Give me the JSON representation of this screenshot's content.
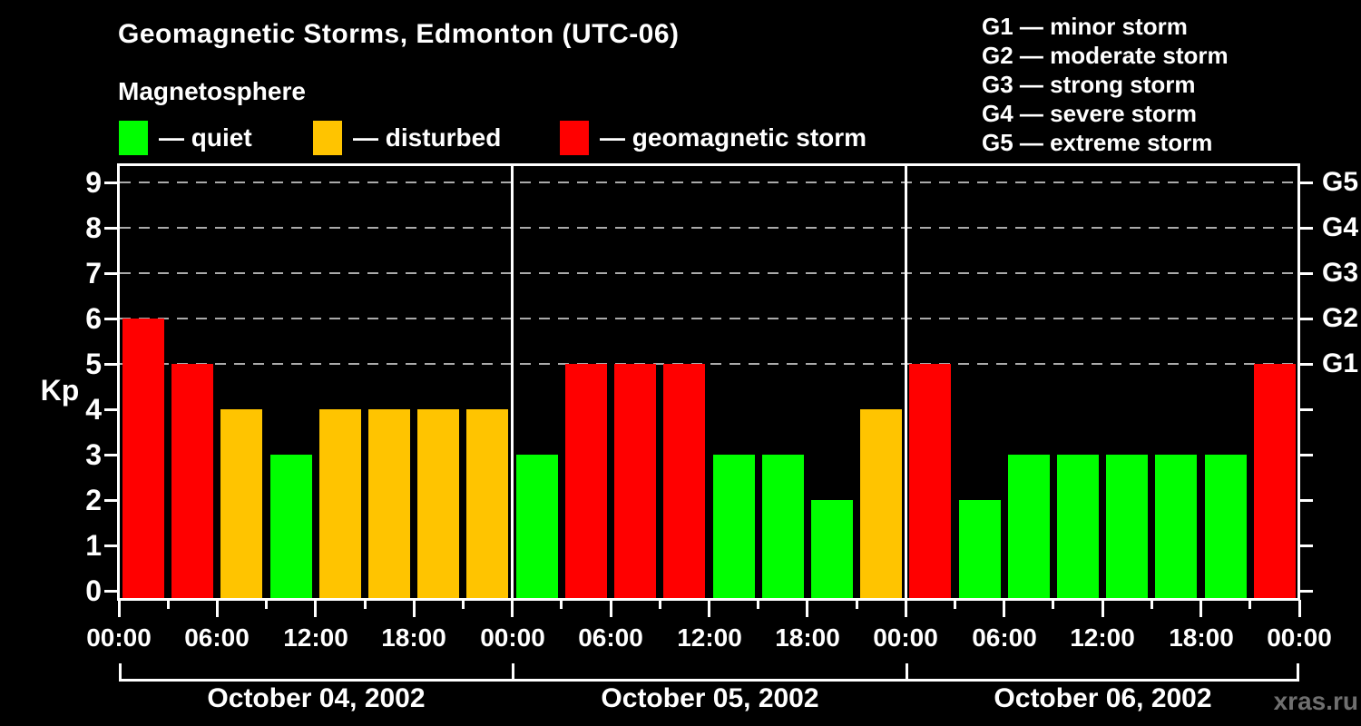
{
  "header": {
    "title": "Geomagnetic Storms, Edmonton (UTC-06)",
    "subtitle": "Magnetosphere"
  },
  "condition_legend": [
    {
      "key": "quiet",
      "label": "— quiet",
      "color": "#00ff00"
    },
    {
      "key": "disturbed",
      "label": "— disturbed",
      "color": "#ffc400"
    },
    {
      "key": "storm",
      "label": "— geomagnetic storm",
      "color": "#ff0000"
    }
  ],
  "g_scale_legend": [
    "G1 — minor storm",
    "G2 — moderate storm",
    "G3 — strong storm",
    "G4 — severe storm",
    "G5 — extreme storm"
  ],
  "watermark": "xras.ru",
  "chart_data": {
    "type": "bar",
    "title": "Geomagnetic Storms, Edmonton (UTC-06)",
    "ylabel": "Kp",
    "ylim": [
      0,
      9
    ],
    "y_tick_labels": [
      "0",
      "1",
      "2",
      "3",
      "4",
      "5",
      "6",
      "7",
      "8",
      "9"
    ],
    "right_axis": [
      {
        "label": "G1",
        "kp": 5
      },
      {
        "label": "G2",
        "kp": 6
      },
      {
        "label": "G3",
        "kp": 7
      },
      {
        "label": "G4",
        "kp": 8
      },
      {
        "label": "G5",
        "kp": 9
      }
    ],
    "gridline_kp_levels": [
      5,
      6,
      7,
      8,
      9
    ],
    "hours_per_bar": 3,
    "x_tick_interval_hours": 6,
    "x_tick_labels": [
      "00:00",
      "06:00",
      "12:00",
      "18:00",
      "00:00",
      "06:00",
      "12:00",
      "18:00",
      "00:00",
      "06:00",
      "12:00",
      "18:00",
      "00:00"
    ],
    "days": [
      {
        "label": "October 04, 2002",
        "kp_values": [
          6,
          5,
          4,
          3,
          4,
          4,
          4,
          4
        ]
      },
      {
        "label": "October 05, 2002",
        "kp_values": [
          3,
          5,
          5,
          5,
          3,
          3,
          2,
          4
        ]
      },
      {
        "label": "October 06, 2002",
        "kp_values": [
          5,
          2,
          3,
          3,
          3,
          3,
          3,
          5
        ]
      }
    ],
    "color_rule": {
      "quiet_kp_max": 3,
      "disturbed_kp": 4,
      "storm_kp_min": 5
    },
    "colors": {
      "quiet": "#00ff00",
      "disturbed": "#ffc400",
      "storm": "#ff0000",
      "grid": "#aaaaaa",
      "frame": "#ffffff",
      "background": "#000000",
      "text": "#ffffff",
      "watermark": "#6f6f6f"
    }
  }
}
